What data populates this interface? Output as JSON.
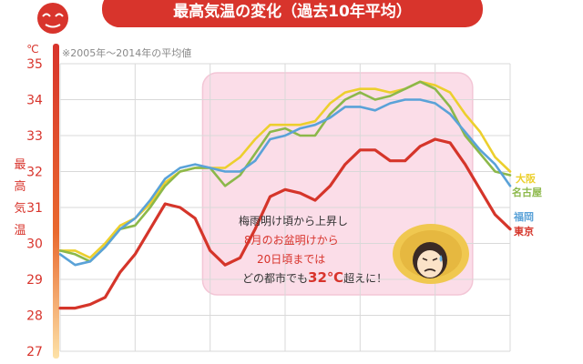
{
  "chart_data": {
    "type": "line",
    "title": "最高気温の変化（過去10年平均）",
    "subtitle": "※2005年～2014年の平均値",
    "y_unit": "℃",
    "ylabel": "最高気温",
    "ylim": [
      27,
      35
    ],
    "yticks": [
      "27",
      "28",
      "29",
      "30",
      "31",
      "32",
      "33",
      "34",
      "35"
    ],
    "xlim": [
      0,
      60
    ],
    "grid": true,
    "legend": "right",
    "highlight_range": [
      19,
      55
    ],
    "annotation": {
      "line1": "梅雨明け頃から上昇し",
      "line2": "8月のお盆明けから",
      "line3": "20日頃までは",
      "line4_a": "どの都市でも",
      "line4_b": "32℃",
      "line4_c": "超えに！"
    },
    "series": [
      {
        "name": "大阪",
        "color": "#eccf2d",
        "points": [
          [
            0,
            29.8
          ],
          [
            2,
            29.8
          ],
          [
            4,
            29.6
          ],
          [
            6,
            30.0
          ],
          [
            8,
            30.5
          ],
          [
            10,
            30.7
          ],
          [
            12,
            31.1
          ],
          [
            14,
            31.7
          ],
          [
            16,
            32.0
          ],
          [
            18,
            32.1
          ],
          [
            20,
            32.1
          ],
          [
            22,
            32.1
          ],
          [
            24,
            32.4
          ],
          [
            26,
            32.9
          ],
          [
            28,
            33.3
          ],
          [
            30,
            33.3
          ],
          [
            32,
            33.3
          ],
          [
            34,
            33.4
          ],
          [
            36,
            33.9
          ],
          [
            38,
            34.2
          ],
          [
            40,
            34.3
          ],
          [
            42,
            34.3
          ],
          [
            44,
            34.2
          ],
          [
            46,
            34.3
          ],
          [
            48,
            34.5
          ],
          [
            50,
            34.4
          ],
          [
            52,
            34.2
          ],
          [
            54,
            33.6
          ],
          [
            56,
            33.1
          ],
          [
            58,
            32.4
          ],
          [
            60,
            32.0
          ],
          [
            62,
            31.8
          ]
        ]
      },
      {
        "name": "名古屋",
        "color": "#8cb84a",
        "points": [
          [
            0,
            29.8
          ],
          [
            2,
            29.7
          ],
          [
            4,
            29.5
          ],
          [
            6,
            29.9
          ],
          [
            8,
            30.4
          ],
          [
            10,
            30.5
          ],
          [
            12,
            31.0
          ],
          [
            14,
            31.6
          ],
          [
            16,
            32.0
          ],
          [
            18,
            32.1
          ],
          [
            20,
            32.1
          ],
          [
            22,
            31.6
          ],
          [
            24,
            31.9
          ],
          [
            26,
            32.5
          ],
          [
            28,
            33.1
          ],
          [
            30,
            33.2
          ],
          [
            32,
            33.0
          ],
          [
            34,
            33.0
          ],
          [
            36,
            33.6
          ],
          [
            38,
            34.0
          ],
          [
            40,
            34.2
          ],
          [
            42,
            34.0
          ],
          [
            44,
            34.1
          ],
          [
            46,
            34.3
          ],
          [
            48,
            34.5
          ],
          [
            50,
            34.3
          ],
          [
            52,
            33.8
          ],
          [
            54,
            33.0
          ],
          [
            56,
            32.5
          ],
          [
            58,
            32.0
          ],
          [
            60,
            31.9
          ],
          [
            62,
            31.6
          ]
        ]
      },
      {
        "name": "福岡",
        "color": "#5aa2d8",
        "points": [
          [
            0,
            29.7
          ],
          [
            2,
            29.4
          ],
          [
            4,
            29.5
          ],
          [
            6,
            29.9
          ],
          [
            8,
            30.4
          ],
          [
            10,
            30.7
          ],
          [
            12,
            31.2
          ],
          [
            14,
            31.8
          ],
          [
            16,
            32.1
          ],
          [
            18,
            32.2
          ],
          [
            20,
            32.1
          ],
          [
            22,
            32.0
          ],
          [
            24,
            32.0
          ],
          [
            26,
            32.3
          ],
          [
            28,
            32.9
          ],
          [
            30,
            33.0
          ],
          [
            32,
            33.2
          ],
          [
            34,
            33.3
          ],
          [
            36,
            33.5
          ],
          [
            38,
            33.8
          ],
          [
            40,
            33.8
          ],
          [
            42,
            33.7
          ],
          [
            44,
            33.9
          ],
          [
            46,
            34.0
          ],
          [
            48,
            34.0
          ],
          [
            50,
            33.9
          ],
          [
            52,
            33.6
          ],
          [
            54,
            33.1
          ],
          [
            56,
            32.6
          ],
          [
            58,
            32.2
          ],
          [
            60,
            31.6
          ],
          [
            62,
            30.8
          ]
        ]
      },
      {
        "name": "東京",
        "color": "#d5352a",
        "points": [
          [
            0,
            28.2
          ],
          [
            2,
            28.2
          ],
          [
            4,
            28.3
          ],
          [
            6,
            28.5
          ],
          [
            8,
            29.2
          ],
          [
            10,
            29.7
          ],
          [
            12,
            30.4
          ],
          [
            14,
            31.1
          ],
          [
            16,
            31.0
          ],
          [
            18,
            30.7
          ],
          [
            20,
            29.8
          ],
          [
            22,
            29.4
          ],
          [
            24,
            29.6
          ],
          [
            26,
            30.4
          ],
          [
            28,
            31.3
          ],
          [
            30,
            31.5
          ],
          [
            32,
            31.4
          ],
          [
            34,
            31.2
          ],
          [
            36,
            31.6
          ],
          [
            38,
            32.2
          ],
          [
            40,
            32.6
          ],
          [
            42,
            32.6
          ],
          [
            44,
            32.3
          ],
          [
            46,
            32.3
          ],
          [
            48,
            32.7
          ],
          [
            50,
            32.9
          ],
          [
            52,
            32.8
          ],
          [
            54,
            32.2
          ],
          [
            56,
            31.5
          ],
          [
            58,
            30.8
          ],
          [
            60,
            30.4
          ],
          [
            62,
            30.5
          ]
        ]
      }
    ]
  }
}
